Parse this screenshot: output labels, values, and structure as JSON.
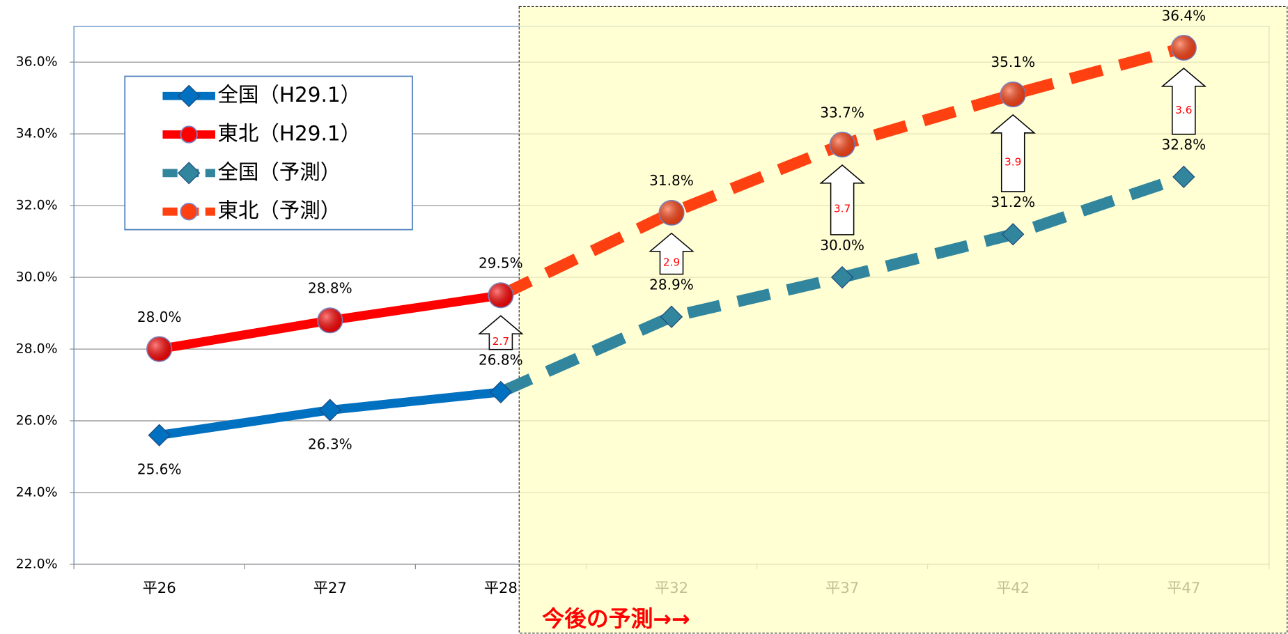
{
  "chart_data": {
    "type": "line",
    "categories": [
      "平26",
      "平27",
      "平28",
      "平32",
      "平37",
      "平42",
      "平47"
    ],
    "series": [
      {
        "name": "全国（H29.1）",
        "color": "#0070c0",
        "style": "solid",
        "marker": "diamond",
        "values": [
          25.6,
          26.3,
          26.8,
          null,
          null,
          null,
          null
        ],
        "value_labels": [
          "25.6%",
          "26.3%",
          "26.8%",
          null,
          null,
          null,
          null
        ]
      },
      {
        "name": "東北（H29.1）",
        "color": "#ff0000",
        "style": "solid",
        "marker": "circle",
        "values": [
          28.0,
          28.8,
          29.5,
          null,
          null,
          null,
          null
        ],
        "value_labels": [
          "28.0%",
          "28.8%",
          "29.5%",
          null,
          null,
          null,
          null
        ]
      },
      {
        "name": "全国（予測）",
        "color": "#31859c",
        "style": "dashed",
        "marker": "diamond",
        "values": [
          null,
          null,
          26.8,
          28.9,
          30.0,
          31.2,
          32.8
        ],
        "value_labels": [
          null,
          null,
          null,
          "28.9%",
          "30.0%",
          "31.2%",
          "32.8%"
        ]
      },
      {
        "name": "東北（予測）",
        "color": "#ff4010",
        "style": "dashed",
        "marker": "circle",
        "values": [
          null,
          null,
          29.5,
          31.8,
          33.7,
          35.1,
          36.4
        ],
        "value_labels": [
          null,
          null,
          null,
          "31.8%",
          "33.7%",
          "35.1%",
          "36.4%"
        ]
      }
    ],
    "differences": [
      null,
      null,
      2.7,
      2.9,
      3.7,
      3.9,
      3.6
    ],
    "forecast_label": "今後の予測→→",
    "ylim": [
      22,
      37
    ],
    "yticks": [
      {
        "value": 22,
        "label": "22.0%"
      },
      {
        "value": 24,
        "label": "24.0%"
      },
      {
        "value": 26,
        "label": "26.0%"
      },
      {
        "value": 28,
        "label": "28.0%"
      },
      {
        "value": 30,
        "label": "30.0%"
      },
      {
        "value": 32,
        "label": "32.0%"
      },
      {
        "value": 34,
        "label": "34.0%"
      },
      {
        "value": 36,
        "label": "36.0%"
      }
    ],
    "grid": true
  }
}
